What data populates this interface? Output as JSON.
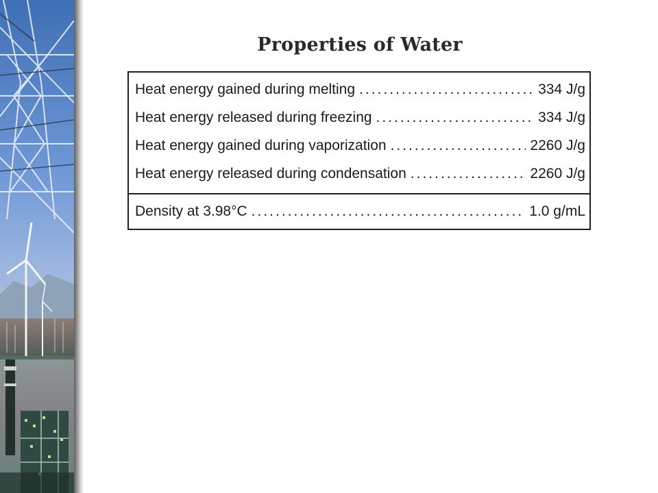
{
  "slide": {
    "title": "Properties of Water"
  },
  "properties": {
    "rows": [
      {
        "label": "Heat energy gained during melting",
        "value": "334 J/g"
      },
      {
        "label": "Heat energy released during freezing",
        "value": "334 J/g"
      },
      {
        "label": "Heat energy gained during vaporization",
        "value": "2260 J/g"
      },
      {
        "label": "Heat energy released during condensation",
        "value": "2260 J/g"
      },
      {
        "label": "Density at 3.98°C",
        "value": "1.0 g/mL"
      }
    ]
  },
  "decor": {
    "side_image": "power-lines-wind-turbines-industry-photo"
  },
  "colors": {
    "border": "#1e1e1e",
    "text": "#1a1a1a",
    "title": "#2a2a2a"
  }
}
